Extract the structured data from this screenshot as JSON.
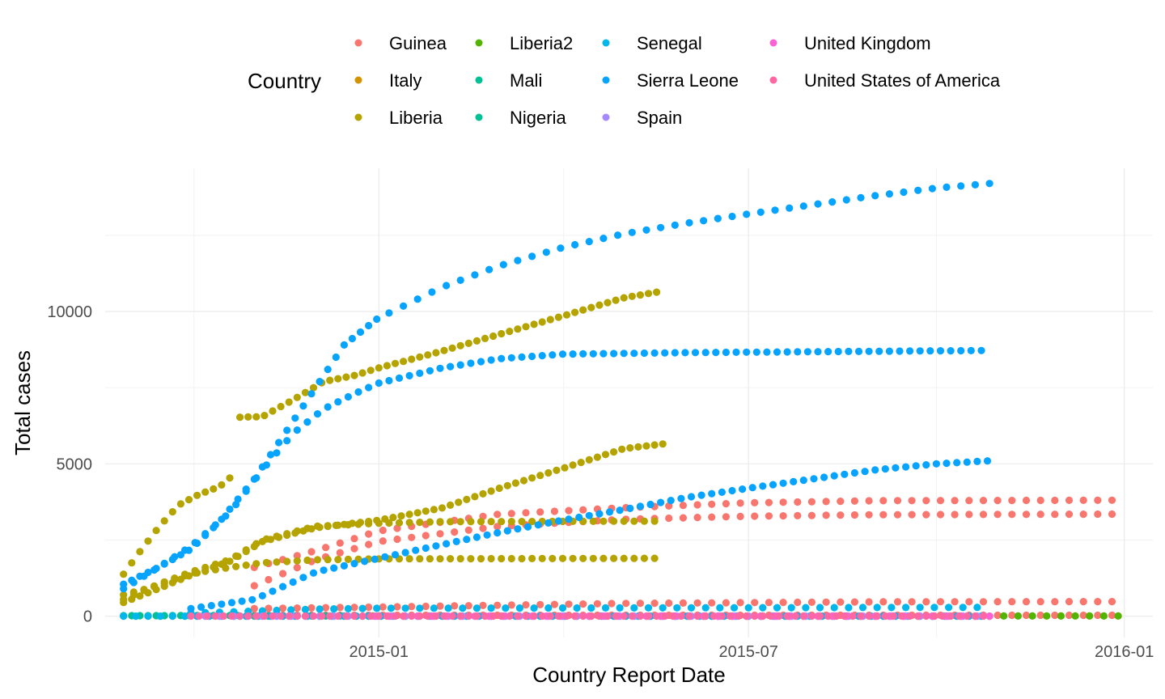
{
  "chart_data": {
    "type": "scatter",
    "title": "",
    "xlabel": "Country Report Date",
    "ylabel": "Total cases",
    "legend_title": "Country",
    "legend_position": "top",
    "grid": true,
    "theme": "minimal",
    "xlim": [
      "2014-08-20",
      "2016-01-15"
    ],
    "ylim": [
      -700,
      14700
    ],
    "x_ticks": [
      {
        "date": "2015-01-01",
        "label": "2015-01"
      },
      {
        "date": "2015-07-01",
        "label": "2015-07"
      },
      {
        "date": "2016-01-01",
        "label": "2016-01"
      }
    ],
    "y_ticks": [
      {
        "value": 0,
        "label": "0"
      },
      {
        "value": 5000,
        "label": "5000"
      },
      {
        "value": 10000,
        "label": "10000"
      }
    ],
    "series": [
      {
        "name": "Guinea",
        "color": "#F8766D",
        "curves": [
          {
            "start": "2014-11-01",
            "end": "2015-12-29",
            "step_days": 7,
            "points": [
              [
                "2014-11-01",
                1600
              ],
              [
                "2014-12-01",
                2150
              ],
              [
                "2015-01-01",
                2800
              ],
              [
                "2015-03-01",
                3350
              ],
              [
                "2015-05-01",
                3560
              ],
              [
                "2015-07-01",
                3720
              ],
              [
                "2015-09-01",
                3790
              ],
              [
                "2015-12-29",
                3805
              ]
            ]
          },
          {
            "start": "2014-11-01",
            "end": "2015-12-29",
            "step_days": 7,
            "points": [
              [
                "2014-11-01",
                1000
              ],
              [
                "2014-12-01",
                1850
              ],
              [
                "2015-01-01",
                2450
              ],
              [
                "2015-03-01",
                2950
              ],
              [
                "2015-05-01",
                3180
              ],
              [
                "2015-07-01",
                3280
              ],
              [
                "2015-09-01",
                3330
              ],
              [
                "2015-12-29",
                3350
              ]
            ]
          },
          {
            "start": "2014-11-01",
            "end": "2015-12-29",
            "step_days": 7,
            "points": [
              [
                "2014-11-01",
                250
              ],
              [
                "2015-01-01",
                300
              ],
              [
                "2015-05-01",
                420
              ],
              [
                "2015-09-01",
                470
              ],
              [
                "2015-12-29",
                480
              ]
            ]
          },
          {
            "start": "2014-11-01",
            "end": "2015-12-29",
            "step_days": 7,
            "points": [
              [
                "2014-11-01",
                30
              ],
              [
                "2015-12-29",
                30
              ]
            ]
          }
        ]
      },
      {
        "name": "Italy",
        "color": "#D39200",
        "curves": [
          {
            "start": "2015-05-12",
            "end": "2015-10-27",
            "step_days": 7,
            "points": [
              [
                "2015-05-12",
                1
              ],
              [
                "2015-10-27",
                1
              ]
            ]
          }
        ]
      },
      {
        "name": "Liberia",
        "color": "#B5A300",
        "curves": [
          {
            "start": "2014-08-29",
            "end": "2014-10-22",
            "step_days": 4,
            "points": [
              [
                "2014-08-29",
                1380
              ],
              [
                "2014-09-05",
                2030
              ],
              [
                "2014-09-15",
                2900
              ],
              [
                "2014-09-25",
                3650
              ],
              [
                "2014-10-05",
                4000
              ],
              [
                "2014-10-15",
                4250
              ],
              [
                "2014-10-22",
                4650
              ]
            ]
          },
          {
            "start": "2014-10-25",
            "end": "2015-05-20",
            "step_days": 4,
            "points": [
              [
                "2014-10-25",
                6530
              ],
              [
                "2014-11-05",
                6550
              ],
              [
                "2014-11-20",
                7100
              ],
              [
                "2014-12-05",
                7700
              ],
              [
                "2014-12-20",
                7900
              ],
              [
                "2015-01-01",
                8150
              ],
              [
                "2015-02-01",
                8700
              ],
              [
                "2015-03-01",
                9250
              ],
              [
                "2015-04-01",
                9850
              ],
              [
                "2015-05-01",
                10450
              ],
              [
                "2015-05-20",
                10670
              ]
            ]
          },
          {
            "start": "2014-08-29",
            "end": "2015-05-20",
            "step_days": 4,
            "points": [
              [
                "2014-08-29",
                450
              ],
              [
                "2014-09-15",
                900
              ],
              [
                "2014-10-01",
                1350
              ],
              [
                "2014-10-20",
                1800
              ],
              [
                "2014-11-05",
                2450
              ],
              [
                "2014-12-01",
                2900
              ],
              [
                "2015-01-01",
                3150
              ],
              [
                "2015-02-01",
                3550
              ],
              [
                "2015-03-01",
                4200
              ],
              [
                "2015-04-01",
                4850
              ],
              [
                "2015-05-01",
                5500
              ],
              [
                "2015-05-20",
                5650
              ]
            ]
          },
          {
            "start": "2014-08-29",
            "end": "2015-05-20",
            "step_days": 5,
            "points": [
              [
                "2014-08-29",
                700
              ],
              [
                "2014-09-15",
                1000
              ],
              [
                "2014-10-01",
                1400
              ],
              [
                "2014-10-20",
                1600
              ],
              [
                "2014-11-05",
                1750
              ],
              [
                "2014-12-01",
                1850
              ],
              [
                "2015-01-01",
                1880
              ],
              [
                "2015-05-20",
                1900
              ]
            ]
          },
          {
            "start": "2014-08-29",
            "end": "2015-05-20",
            "step_days": 5,
            "points": [
              [
                "2014-08-29",
                550
              ],
              [
                "2014-09-15",
                1050
              ],
              [
                "2014-10-01",
                1450
              ],
              [
                "2014-10-20",
                1850
              ],
              [
                "2014-11-05",
                2500
              ],
              [
                "2014-12-01",
                2950
              ],
              [
                "2015-01-01",
                3050
              ],
              [
                "2015-02-01",
                3100
              ],
              [
                "2015-05-20",
                3120
              ]
            ]
          }
        ]
      },
      {
        "name": "Liberia2",
        "color": "#53B400",
        "curves": [
          {
            "start": "2014-12-29",
            "end": "2015-01-01",
            "step_days": 3,
            "points": [
              [
                "2014-12-29",
                8
              ],
              [
                "2015-01-01",
                8
              ]
            ]
          },
          {
            "start": "2015-11-03",
            "end": "2015-12-29",
            "step_days": 7,
            "points": [
              [
                "2015-11-03",
                6
              ],
              [
                "2015-12-29",
                6
              ]
            ]
          }
        ]
      },
      {
        "name": "Mali",
        "color": "#00C094",
        "curves": [
          {
            "start": "2014-10-25",
            "end": "2014-12-30",
            "step_days": 7,
            "points": [
              [
                "2014-10-25",
                2
              ],
              [
                "2014-12-30",
                8
              ]
            ]
          }
        ]
      },
      {
        "name": "Nigeria",
        "color": "#00C094",
        "curves": [
          {
            "start": "2014-08-29",
            "end": "2014-10-25",
            "step_days": 4,
            "points": [
              [
                "2014-08-29",
                17
              ],
              [
                "2014-10-25",
                20
              ]
            ]
          }
        ]
      },
      {
        "name": "Senegal",
        "color": "#00B6EB",
        "curves": [
          {
            "start": "2014-08-29",
            "end": "2015-10-27",
            "step_days": 6,
            "points": [
              [
                "2014-08-29",
                1
              ],
              [
                "2015-10-27",
                1
              ]
            ]
          },
          {
            "start": "2014-10-01",
            "end": "2015-10-27",
            "step_days": 7,
            "points": [
              [
                "2014-10-01",
                100
              ],
              [
                "2014-12-01",
                230
              ],
              [
                "2015-01-01",
                260
              ],
              [
                "2015-10-27",
                290
              ]
            ]
          }
        ]
      },
      {
        "name": "Sierra Leone",
        "color": "#06A4FF",
        "curves": [
          {
            "start": "2014-08-29",
            "end": "2015-01-01",
            "step_days": 4,
            "points": [
              [
                "2014-08-29",
                1050
              ],
              [
                "2014-09-15",
                1600
              ],
              [
                "2014-10-01",
                2200
              ],
              [
                "2014-10-15",
                3100
              ],
              [
                "2014-11-01",
                4500
              ],
              [
                "2014-11-15",
                5900
              ],
              [
                "2014-12-01",
                7500
              ],
              [
                "2014-12-15",
                8900
              ],
              [
                "2015-01-01",
                9800
              ]
            ]
          },
          {
            "start": "2015-01-06",
            "end": "2015-10-27",
            "step_days": 7,
            "points": [
              [
                "2015-01-06",
                9950
              ],
              [
                "2015-02-01",
                10800
              ],
              [
                "2015-03-01",
                11500
              ],
              [
                "2015-04-01",
                12100
              ],
              [
                "2015-05-01",
                12550
              ],
              [
                "2015-06-01",
                12900
              ],
              [
                "2015-07-01",
                13200
              ],
              [
                "2015-08-01",
                13500
              ],
              [
                "2015-09-01",
                13800
              ],
              [
                "2015-10-01",
                14050
              ],
              [
                "2015-10-27",
                14200
              ]
            ]
          },
          {
            "start": "2014-08-29",
            "end": "2015-10-27",
            "step_days": 5,
            "points": [
              [
                "2014-08-29",
                900
              ],
              [
                "2014-09-15",
                1600
              ],
              [
                "2014-10-01",
                2300
              ],
              [
                "2014-10-20",
                3400
              ],
              [
                "2014-11-05",
                4800
              ],
              [
                "2014-11-20",
                6000
              ],
              [
                "2014-12-05",
                6800
              ],
              [
                "2014-12-20",
                7300
              ],
              [
                "2015-01-01",
                7650
              ],
              [
                "2015-02-01",
                8150
              ],
              [
                "2015-03-01",
                8450
              ],
              [
                "2015-04-01",
                8600
              ],
              [
                "2015-06-01",
                8650
              ],
              [
                "2015-10-27",
                8720
              ]
            ]
          },
          {
            "start": "2014-10-01",
            "end": "2015-10-27",
            "step_days": 5,
            "points": [
              [
                "2014-10-01",
                250
              ],
              [
                "2014-11-01",
                550
              ],
              [
                "2014-12-01",
                1450
              ],
              [
                "2015-01-01",
                1900
              ],
              [
                "2015-02-01",
                2350
              ],
              [
                "2015-03-01",
                2750
              ],
              [
                "2015-04-01",
                3150
              ],
              [
                "2015-05-01",
                3500
              ],
              [
                "2015-06-01",
                3900
              ],
              [
                "2015-07-01",
                4200
              ],
              [
                "2015-08-01",
                4500
              ],
              [
                "2015-09-01",
                4800
              ],
              [
                "2015-10-01",
                5000
              ],
              [
                "2015-10-27",
                5100
              ]
            ]
          }
        ]
      },
      {
        "name": "Spain",
        "color": "#A58AFF",
        "curves": [
          {
            "start": "2014-10-08",
            "end": "2015-10-27",
            "step_days": 7,
            "points": [
              [
                "2014-10-08",
                1
              ],
              [
                "2015-10-27",
                1
              ]
            ]
          }
        ]
      },
      {
        "name": "United Kingdom",
        "color": "#FB61D7",
        "curves": [
          {
            "start": "2014-12-30",
            "end": "2015-10-27",
            "step_days": 7,
            "points": [
              [
                "2014-12-30",
                1
              ],
              [
                "2015-10-27",
                1
              ]
            ]
          }
        ]
      },
      {
        "name": "United States of America",
        "color": "#FF67A4",
        "curves": [
          {
            "start": "2014-10-01",
            "end": "2015-10-27",
            "step_days": 4,
            "points": [
              [
                "2014-10-01",
                3
              ],
              [
                "2015-10-27",
                4
              ]
            ]
          }
        ]
      }
    ]
  }
}
